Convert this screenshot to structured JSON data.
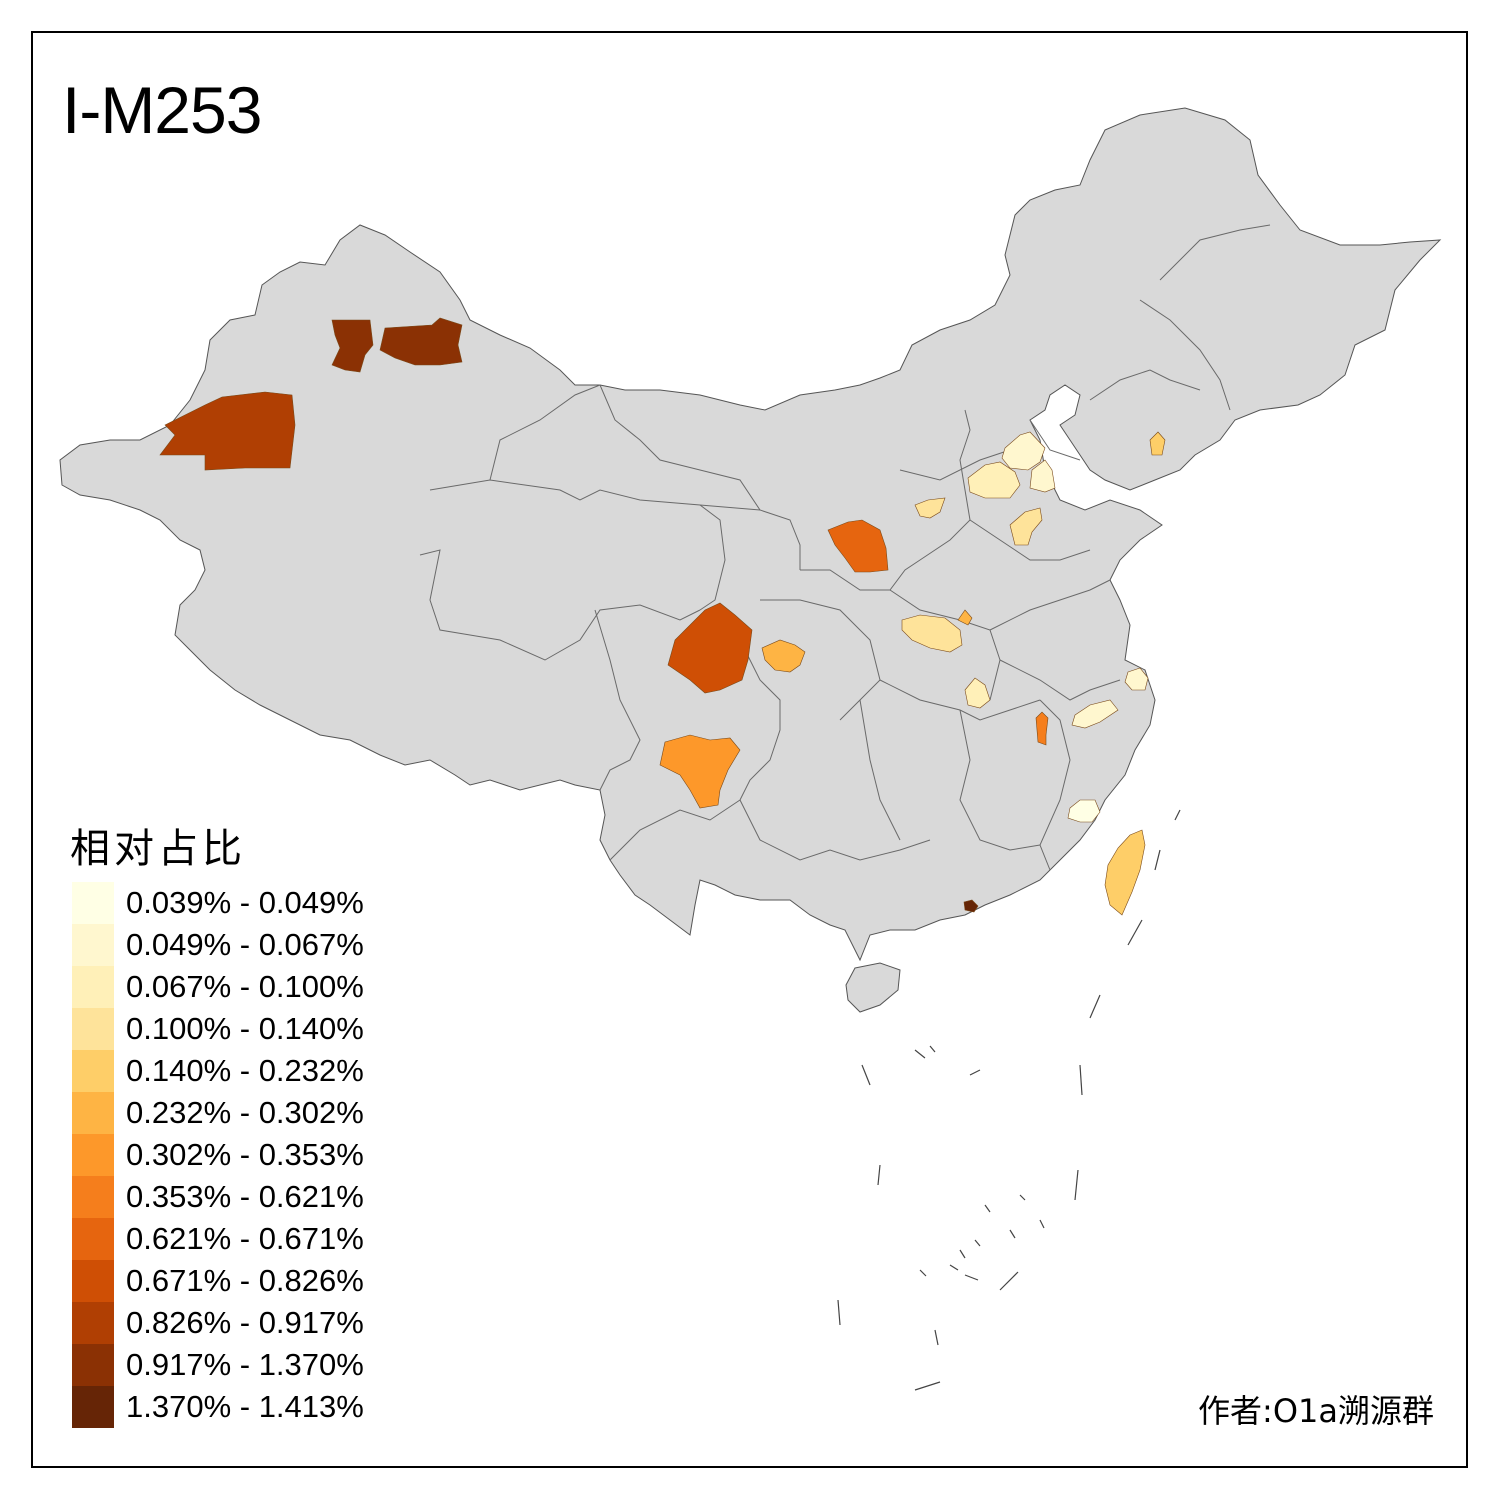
{
  "map": {
    "title": "I-M253",
    "credit": "作者:O1a溯源群",
    "base_fill": "#d9d9d9",
    "border_color": "#555555"
  },
  "legend": {
    "title": "相对占比",
    "entries": [
      {
        "label": "0.039% - 0.049%",
        "color": "#ffffe5"
      },
      {
        "label": "0.049% - 0.067%",
        "color": "#fff7cf"
      },
      {
        "label": "0.067% - 0.100%",
        "color": "#fff0b8"
      },
      {
        "label": "0.100% - 0.140%",
        "color": "#fee39a"
      },
      {
        "label": "0.140% - 0.232%",
        "color": "#fece68"
      },
      {
        "label": "0.232% - 0.302%",
        "color": "#feb444"
      },
      {
        "label": "0.302% - 0.353%",
        "color": "#fd982a"
      },
      {
        "label": "0.353% - 0.621%",
        "color": "#f57e1c"
      },
      {
        "label": "0.621% - 0.671%",
        "color": "#e6650f"
      },
      {
        "label": "0.671% - 0.826%",
        "color": "#cf4f05"
      },
      {
        "label": "0.826% - 0.917%",
        "color": "#b03f03"
      },
      {
        "label": "0.917% - 1.370%",
        "color": "#8b3104"
      },
      {
        "label": "1.370% - 1.413%",
        "color": "#662506"
      }
    ]
  },
  "regions": [
    {
      "id": "xinjiang-north-a",
      "class": 11
    },
    {
      "id": "xinjiang-north-b",
      "class": 11
    },
    {
      "id": "xinjiang-west",
      "class": 10
    },
    {
      "id": "ningxia-gansu",
      "class": 8
    },
    {
      "id": "sichuan-north",
      "class": 9
    },
    {
      "id": "chongqing-area",
      "class": 5
    },
    {
      "id": "yunnan-north",
      "class": 6
    },
    {
      "id": "hebei-north",
      "class": 1
    },
    {
      "id": "hebei-west",
      "class": 2
    },
    {
      "id": "tianjin-area",
      "class": 1
    },
    {
      "id": "shanxi-north",
      "class": 3
    },
    {
      "id": "shandong-west",
      "class": 3
    },
    {
      "id": "liaoning-south",
      "class": 4
    },
    {
      "id": "henan-center",
      "class": 3
    },
    {
      "id": "henan-east-dot",
      "class": 5
    },
    {
      "id": "hubei-east",
      "class": 2
    },
    {
      "id": "jiangxi-north",
      "class": 7
    },
    {
      "id": "anhui-south",
      "class": 1
    },
    {
      "id": "jiangsu-south",
      "class": 1
    },
    {
      "id": "fujian-north",
      "class": 0
    },
    {
      "id": "taiwan",
      "class": 4
    },
    {
      "id": "guangdong-pearl",
      "class": 12
    }
  ]
}
